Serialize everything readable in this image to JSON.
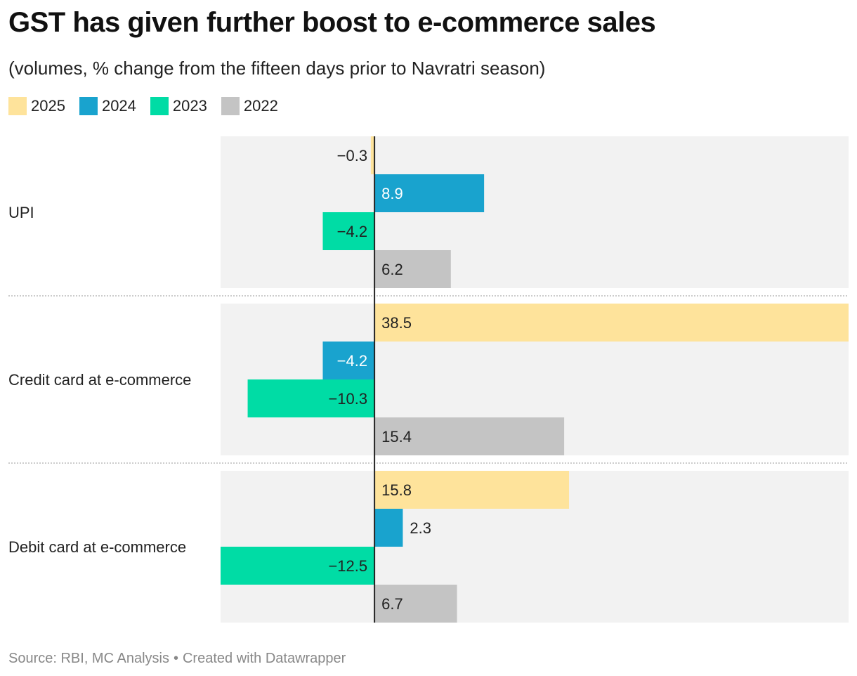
{
  "title": "GST has given further boost to e-commerce sales",
  "subtitle": "(volumes, % change from the fifteen days prior to Navratri season)",
  "footer": {
    "source": "Source: RBI, MC Analysis",
    "separator": "•",
    "credit": "Created with Datawrapper"
  },
  "colors": {
    "2025": "#fee39b",
    "2024": "#19a3ce",
    "2023": "#00dca5",
    "2022": "#c4c4c4",
    "panel": "#f2f2f2",
    "axis": "#222222"
  },
  "chart_data": {
    "type": "bar",
    "orientation": "horizontal",
    "categories": [
      "UPI",
      "Credit card at e-commerce",
      "Debit card at e-commerce"
    ],
    "series": [
      {
        "name": "2025",
        "values": [
          -0.3,
          38.5,
          15.8
        ]
      },
      {
        "name": "2024",
        "values": [
          8.9,
          -4.2,
          2.3
        ]
      },
      {
        "name": "2023",
        "values": [
          -4.2,
          -10.3,
          -12.5
        ]
      },
      {
        "name": "2022",
        "values": [
          6.2,
          15.4,
          6.7
        ]
      }
    ],
    "labels": [
      [
        "−0.3",
        "8.9",
        "−4.2",
        "6.2"
      ],
      [
        "38.5",
        "−4.2",
        "−10.3",
        "15.4"
      ],
      [
        "15.8",
        "2.3",
        "−12.5",
        "6.7"
      ]
    ],
    "xlim": [
      -12.5,
      38.5
    ],
    "legend_position": "top-left",
    "grid": false
  }
}
